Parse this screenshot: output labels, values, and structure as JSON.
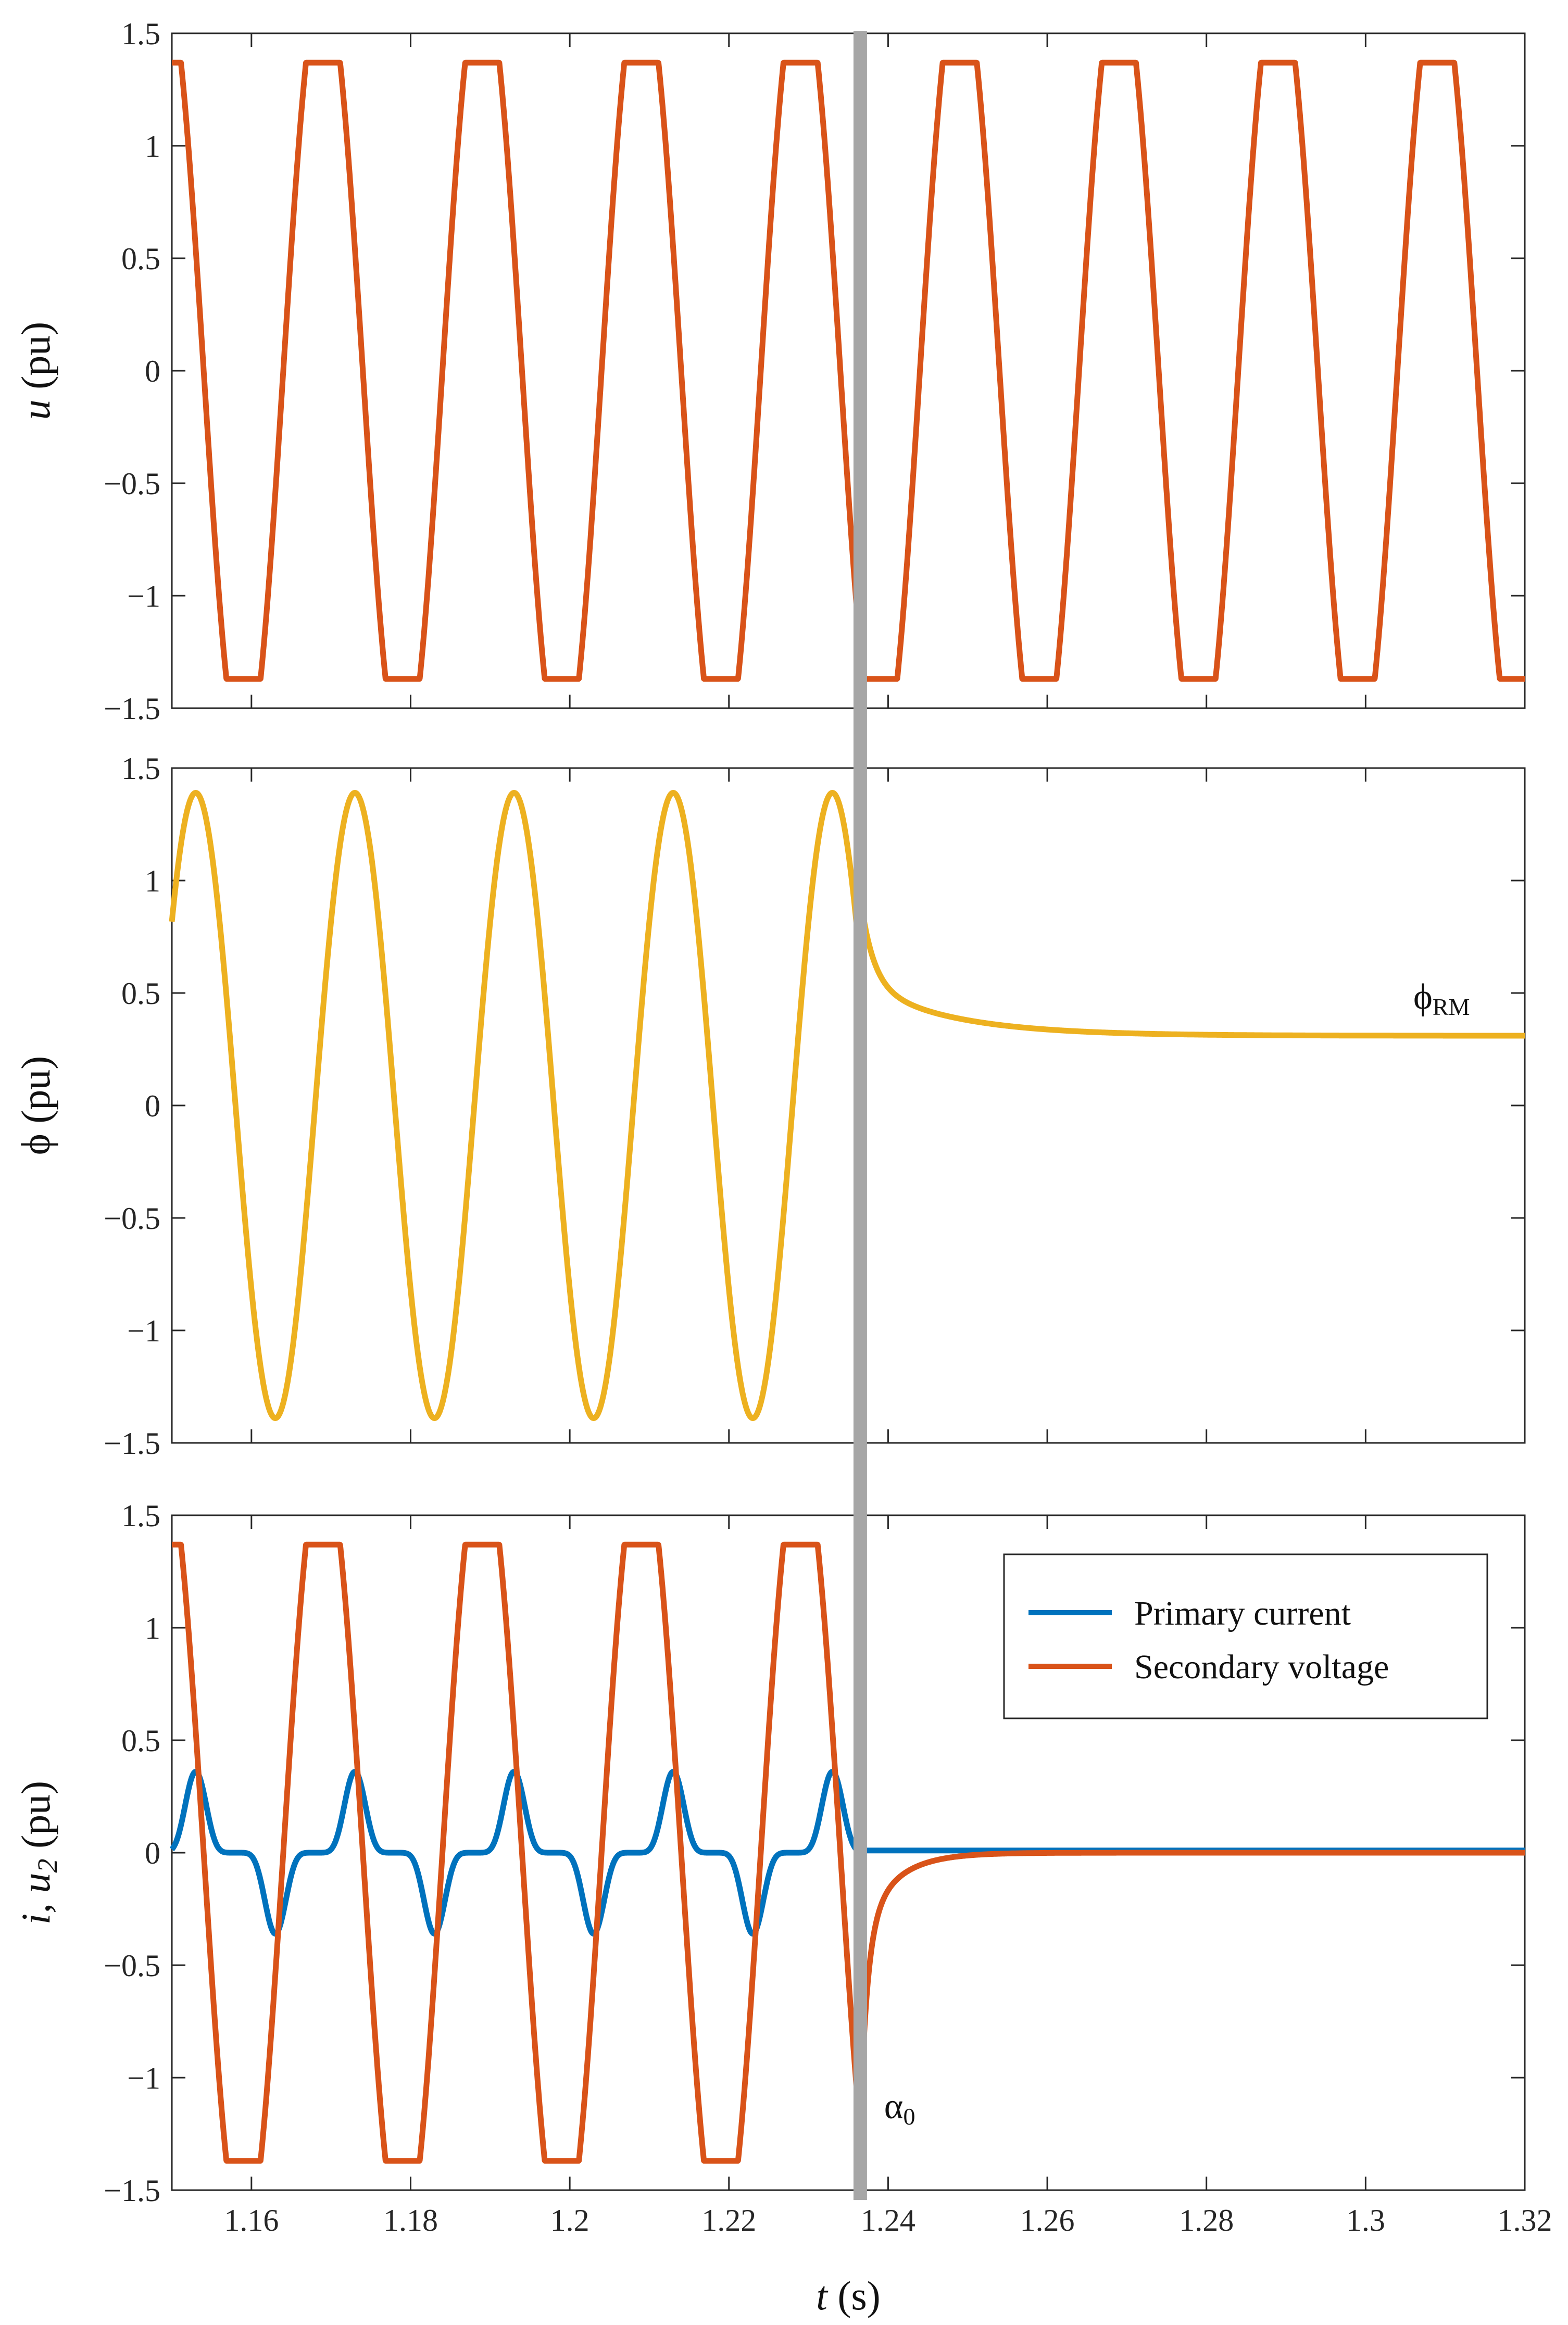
{
  "chart_data": [
    {
      "type": "line",
      "id": "top",
      "ylabel_var": "u",
      "ylabel_unit": " (pu)",
      "xlim": [
        1.15,
        1.32
      ],
      "ylim": [
        -1.5,
        1.5
      ],
      "x_ticks": [
        1.16,
        1.18,
        1.2,
        1.22,
        1.24,
        1.26,
        1.28,
        1.3,
        1.32
      ],
      "y_ticks": [
        -1.5,
        -1,
        -0.5,
        0,
        0.5,
        1,
        1.5
      ],
      "y_tick_labels": [
        "−1.5",
        "−1",
        "−0.5",
        "0",
        "0.5",
        "1",
        "1.5"
      ],
      "series": [
        {
          "name": "u",
          "color": "#D95319",
          "waveform": "flat-top sine",
          "amplitude": 1.37,
          "frequency_hz": 50,
          "zero_crossing_falling_s": 1.154,
          "x_range": [
            1.15,
            1.32
          ]
        }
      ]
    },
    {
      "type": "line",
      "id": "middle",
      "ylabel_var": "ϕ",
      "ylabel_unit": " (pu)",
      "xlim": [
        1.15,
        1.32
      ],
      "ylim": [
        -1.5,
        1.5
      ],
      "x_ticks": [
        1.16,
        1.18,
        1.2,
        1.22,
        1.24,
        1.26,
        1.28,
        1.3,
        1.32
      ],
      "y_ticks": [
        -1.5,
        -1,
        -0.5,
        0,
        0.5,
        1,
        1.5
      ],
      "y_tick_labels": [
        "−1.5",
        "−1",
        "−0.5",
        "0",
        "0.5",
        "1",
        "1.5"
      ],
      "series": [
        {
          "name": "flux",
          "color": "#EDB120",
          "waveform": "sine then decay to residual",
          "amplitude": 1.39,
          "frequency_hz": 50,
          "peak_s": 1.153,
          "switch_time_s": 1.2365,
          "value_at_switch": 0.93,
          "residual": 0.31,
          "x_range": [
            1.15,
            1.32
          ]
        }
      ],
      "annotation": {
        "text": "ϕ",
        "sub": "RM",
        "x": 1.306,
        "y": 0.43
      }
    },
    {
      "type": "line",
      "id": "bottom",
      "ylabel_var": "i, u",
      "ylabel_sub": "2",
      "ylabel_unit": " (pu)",
      "xlabel_var": "t",
      "xlabel_unit": " (s)",
      "xlim": [
        1.15,
        1.32
      ],
      "ylim": [
        -1.5,
        1.5
      ],
      "x_ticks": [
        1.16,
        1.18,
        1.2,
        1.22,
        1.24,
        1.26,
        1.28,
        1.3,
        1.32
      ],
      "x_tick_labels": [
        "1.16",
        "1.18",
        "1.2",
        "1.22",
        "1.24",
        "1.26",
        "1.28",
        "1.3",
        "1.32"
      ],
      "y_ticks": [
        -1.5,
        -1,
        -0.5,
        0,
        0.5,
        1,
        1.5
      ],
      "y_tick_labels": [
        "−1.5",
        "−1",
        "−0.5",
        "0",
        "0.5",
        "1",
        "1.5"
      ],
      "series": [
        {
          "name": "Primary current",
          "color": "#0072BD",
          "peak": 0.36,
          "frequency_hz": 50,
          "peak_s": 1.153,
          "switch_time_s": 1.2365,
          "after_switch": 0.01,
          "x_range": [
            1.15,
            1.32
          ]
        },
        {
          "name": "Secondary voltage",
          "color": "#D95319",
          "amplitude": 1.37,
          "frequency_hz": 50,
          "zero_crossing_falling_s": 1.154,
          "switch_time_s": 1.2365,
          "spike_min": -1.2,
          "after_switch": 0,
          "x_range": [
            1.15,
            1.32
          ]
        }
      ],
      "legend": {
        "position": "top-right",
        "entries": [
          "Primary current",
          "Secondary voltage"
        ]
      },
      "annotation": {
        "text": "α",
        "sub": "0",
        "x": 1.2395,
        "y": -1.18
      }
    }
  ],
  "switch_marker": {
    "x": 1.2365,
    "color": "#A6A6A6"
  }
}
